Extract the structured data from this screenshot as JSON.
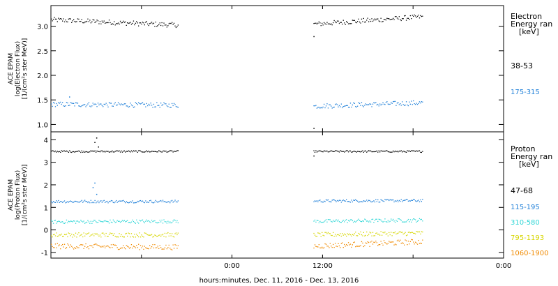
{
  "chart_data": [
    {
      "type": "scatter",
      "panel": "electron",
      "ylabel_lines": [
        "ACE EPAM",
        "log(Electron Flux)",
        "[1/(cm²s ster MeV)]"
      ],
      "yticks": [
        1.0,
        1.5,
        2.0,
        2.5,
        3.0
      ],
      "ytick_labels": [
        "1.0",
        "1.5",
        "2.0",
        "2.5",
        "3.0"
      ],
      "ylim": [
        0.85,
        3.42
      ],
      "legend_title_lines": [
        "Electron",
        "Energy ran",
        "[keV]"
      ],
      "series": [
        {
          "name": "38-53",
          "color": "#000000",
          "segments": [
            {
              "x_range": [
                0.0,
                0.7
              ],
              "level_start": 3.14,
              "level_end": 3.03,
              "scatter": 0.05
            },
            {
              "x_range": [
                1.45,
                2.05
              ],
              "level_start": 3.05,
              "level_end": 3.2,
              "scatter": 0.05
            }
          ],
          "outliers": [
            {
              "x": 1.45,
              "y": 2.8
            },
            {
              "x": 1.45,
              "y": 0.93
            }
          ]
        },
        {
          "name": "175-315",
          "color": "#1e7fd8",
          "segments": [
            {
              "x_range": [
                0.0,
                0.7
              ],
              "level_start": 1.42,
              "level_end": 1.4,
              "scatter": 0.05
            },
            {
              "x_range": [
                1.45,
                2.05
              ],
              "level_start": 1.38,
              "level_end": 1.45,
              "scatter": 0.05
            }
          ],
          "outliers": [
            {
              "x": 0.1,
              "y": 1.57
            }
          ]
        }
      ]
    },
    {
      "type": "scatter",
      "panel": "proton",
      "ylabel_lines": [
        "ACE EPAM",
        "log(Proton Flux)",
        "[1/(cm²s ster MeV)]"
      ],
      "yticks": [
        -1,
        0,
        1,
        2,
        3,
        4
      ],
      "ytick_labels": [
        "-1",
        "0",
        "1",
        "2",
        "3",
        "4"
      ],
      "ylim": [
        -1.25,
        4.35
      ],
      "legend_title_lines": [
        "Proton",
        "Energy ran",
        "[keV]"
      ],
      "series": [
        {
          "name": "47-68",
          "color": "#000000",
          "segments": [
            {
              "x_range": [
                0.0,
                0.7
              ],
              "level_start": 3.5,
              "level_end": 3.5,
              "scatter": 0.04
            },
            {
              "x_range": [
                1.45,
                2.05
              ],
              "level_start": 3.5,
              "level_end": 3.5,
              "scatter": 0.04
            }
          ],
          "outliers": [
            {
              "x": 0.24,
              "y": 3.9
            },
            {
              "x": 0.25,
              "y": 4.1
            },
            {
              "x": 0.26,
              "y": 3.7
            },
            {
              "x": 1.45,
              "y": 3.3
            }
          ]
        },
        {
          "name": "115-195",
          "color": "#1e7fd8",
          "segments": [
            {
              "x_range": [
                0.0,
                0.7
              ],
              "level_start": 1.28,
              "level_end": 1.28,
              "scatter": 0.06
            },
            {
              "x_range": [
                1.45,
                2.05
              ],
              "level_start": 1.3,
              "level_end": 1.32,
              "scatter": 0.06
            }
          ],
          "outliers": [
            {
              "x": 0.23,
              "y": 1.9
            },
            {
              "x": 0.24,
              "y": 2.1
            },
            {
              "x": 0.25,
              "y": 1.6
            }
          ]
        },
        {
          "name": "310-580",
          "color": "#2ed6d6",
          "segments": [
            {
              "x_range": [
                0.0,
                0.7
              ],
              "level_start": 0.38,
              "level_end": 0.4,
              "scatter": 0.08
            },
            {
              "x_range": [
                1.45,
                2.05
              ],
              "level_start": 0.4,
              "level_end": 0.45,
              "scatter": 0.08
            }
          ],
          "outliers": []
        },
        {
          "name": "795-1193",
          "color": "#d6d600",
          "segments": [
            {
              "x_range": [
                0.0,
                0.7
              ],
              "level_start": -0.2,
              "level_end": -0.2,
              "scatter": 0.1
            },
            {
              "x_range": [
                1.45,
                2.05
              ],
              "level_start": -0.2,
              "level_end": -0.12,
              "scatter": 0.1
            }
          ],
          "outliers": []
        },
        {
          "name": "1060-1900",
          "color": "#f08a00",
          "segments": [
            {
              "x_range": [
                0.0,
                0.7
              ],
              "level_start": -0.7,
              "level_end": -0.75,
              "scatter": 0.12
            },
            {
              "x_range": [
                1.45,
                2.05
              ],
              "level_start": -0.7,
              "level_end": -0.5,
              "scatter": 0.12
            }
          ],
          "outliers": []
        }
      ]
    }
  ],
  "x_axis": {
    "unit": "days since left edge (Dec. 11 start of plot)",
    "range": [
      0,
      2.5
    ],
    "ticks": [
      0.5,
      1.0,
      1.5,
      2.0,
      2.5
    ],
    "tick_labels": [
      "0:00",
      "12:00",
      "0:00"
    ],
    "labeled_ticks": [
      1.0,
      1.5,
      2.5
    ],
    "label": "hours:minutes, Dec. 11, 2016 - Dec. 13, 2016"
  }
}
